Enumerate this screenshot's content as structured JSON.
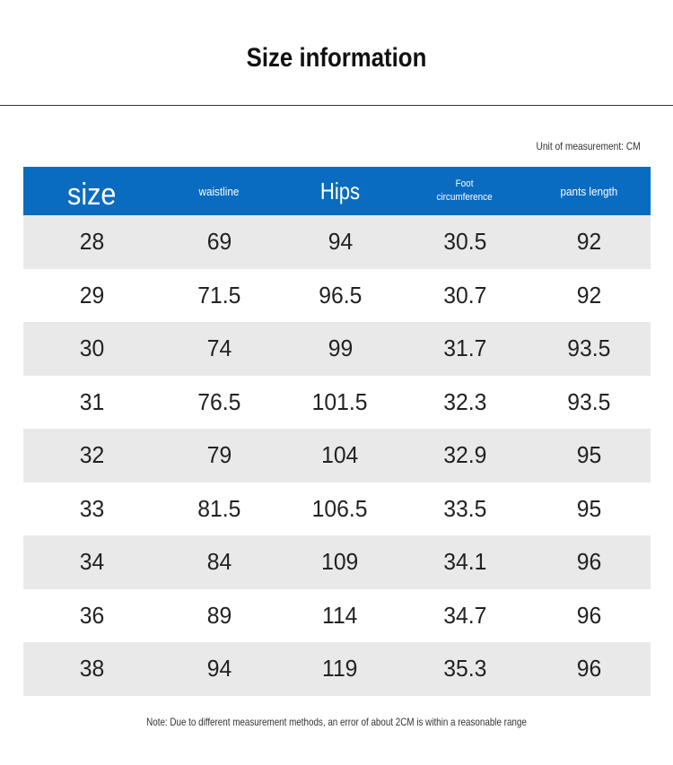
{
  "title": "Size information",
  "unit_note": "Unit of measurement: CM",
  "table": {
    "headers": {
      "size": "size",
      "waistline": "waistline",
      "hips": "Hips",
      "foot_line1": "Foot",
      "foot_line2": "circumference",
      "pants_length": "pants length"
    },
    "rows": [
      [
        "28",
        "69",
        "94",
        "30.5",
        "92"
      ],
      [
        "29",
        "71.5",
        "96.5",
        "30.7",
        "92"
      ],
      [
        "30",
        "74",
        "99",
        "31.7",
        "93.5"
      ],
      [
        "31",
        "76.5",
        "101.5",
        "32.3",
        "93.5"
      ],
      [
        "32",
        "79",
        "104",
        "32.9",
        "95"
      ],
      [
        "33",
        "81.5",
        "106.5",
        "33.5",
        "95"
      ],
      [
        "34",
        "84",
        "109",
        "34.1",
        "96"
      ],
      [
        "36",
        "89",
        "114",
        "34.7",
        "96"
      ],
      [
        "38",
        "94",
        "119",
        "35.3",
        "96"
      ]
    ]
  },
  "footnote": "Note: Due to different measurement methods, an error of about 2CM is within a reasonable range",
  "colors": {
    "header_blue": "#0a6cc0",
    "row_shade": "#e9e9e9"
  }
}
